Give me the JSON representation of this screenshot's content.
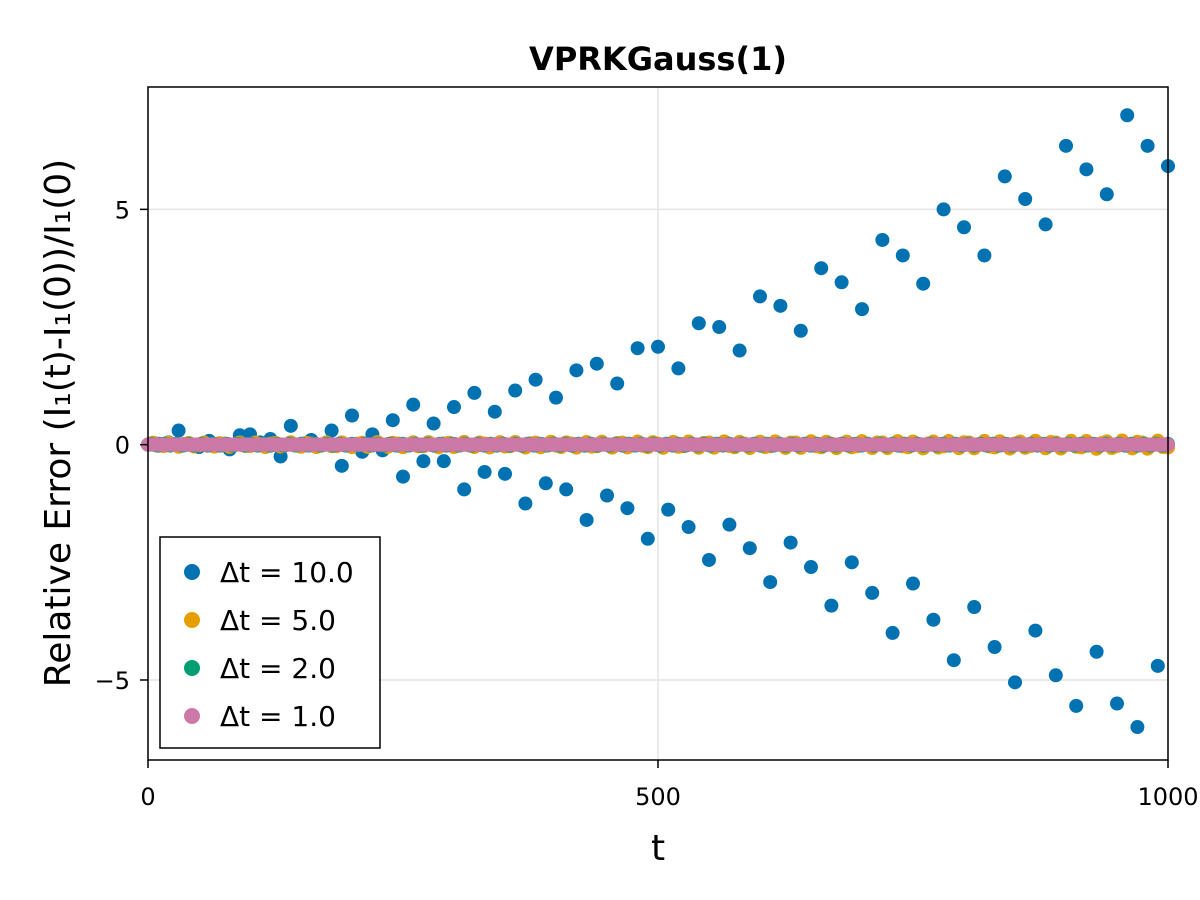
{
  "chart_data": {
    "type": "scatter",
    "title": "VPRKGauss(1)",
    "xlabel": "t",
    "ylabel": "Relative Error (I₁(t)-I₁(0))/I₁(0)",
    "xlim": [
      0,
      1000
    ],
    "ylim": [
      -6.7,
      7.6
    ],
    "xticks": [
      0,
      500,
      1000
    ],
    "xtick_labels": [
      "0",
      "500",
      "1000"
    ],
    "yticks": [
      -5,
      0,
      5
    ],
    "ytick_labels": [
      "−5",
      "0",
      "5"
    ],
    "grid": true,
    "legend_position": "bottom-left",
    "series": [
      {
        "name": "Δt = 10.0",
        "color": "#0072b2",
        "x": [
          0,
          10,
          20,
          30,
          40,
          50,
          60,
          70,
          80,
          90,
          100,
          110,
          120,
          130,
          140,
          150,
          160,
          170,
          180,
          190,
          200,
          210,
          220,
          230,
          240,
          250,
          260,
          270,
          280,
          290,
          300,
          310,
          320,
          330,
          340,
          350,
          360,
          370,
          380,
          390,
          400,
          410,
          420,
          430,
          440,
          450,
          460,
          470,
          480,
          490,
          500,
          510,
          520,
          530,
          540,
          550,
          560,
          570,
          580,
          590,
          600,
          610,
          620,
          630,
          640,
          650,
          660,
          670,
          680,
          690,
          700,
          710,
          720,
          730,
          740,
          750,
          760,
          770,
          780,
          790,
          800,
          810,
          820,
          830,
          840,
          850,
          860,
          870,
          880,
          890,
          900,
          910,
          920,
          930,
          940,
          950,
          960,
          970,
          980,
          990,
          1000
        ],
        "y": [
          0.0,
          0.02,
          0.05,
          0.3,
          0.0,
          -0.05,
          0.08,
          -0.02,
          -0.1,
          0.2,
          0.22,
          0.05,
          0.12,
          -0.25,
          0.4,
          0.02,
          0.1,
          0.0,
          0.3,
          -0.45,
          0.62,
          -0.15,
          0.22,
          -0.12,
          0.52,
          -0.68,
          0.85,
          -0.35,
          0.45,
          -0.35,
          0.8,
          -0.95,
          1.1,
          -0.58,
          0.7,
          -0.62,
          1.15,
          -1.25,
          1.38,
          -0.82,
          1.0,
          -0.95,
          1.58,
          -1.6,
          1.72,
          -1.08,
          1.3,
          -1.35,
          2.05,
          -2.0,
          2.08,
          -1.38,
          1.62,
          -1.75,
          2.58,
          -2.45,
          2.5,
          -1.7,
          2.0,
          -2.2,
          3.15,
          -2.92,
          2.95,
          -2.08,
          2.42,
          -2.6,
          3.75,
          -3.42,
          3.45,
          -2.5,
          2.88,
          -3.15,
          4.35,
          -4.0,
          4.02,
          -2.95,
          3.42,
          -3.72,
          5.0,
          -4.58,
          4.62,
          -3.45,
          4.02,
          -4.3,
          5.7,
          -5.05,
          5.22,
          -3.95,
          4.68,
          -4.9,
          6.35,
          -5.55,
          5.85,
          -4.4,
          5.32,
          -5.5,
          7.0,
          -6.0,
          6.35,
          -4.7,
          5.92
        ]
      },
      {
        "name": "Δt = 5.0",
        "color": "#e69f00",
        "x": [],
        "y": [],
        "band": 0.09
      },
      {
        "name": "Δt = 2.0",
        "color": "#009e73",
        "x": [],
        "y": [],
        "band": 0.02
      },
      {
        "name": "Δt = 1.0",
        "color": "#cc79a7",
        "x": [],
        "y": [],
        "band": 0.0
      }
    ]
  }
}
